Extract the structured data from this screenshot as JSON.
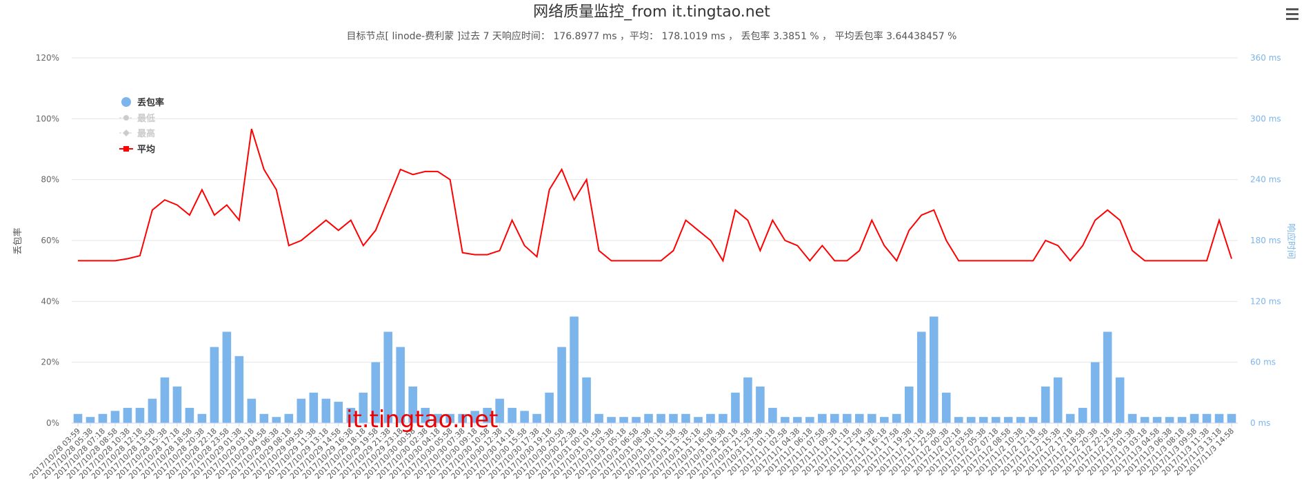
{
  "chart_data": {
    "type": "bar_line",
    "title": "网络质量监控_from it.tingtao.net",
    "subtitle": "目标节点[ linode-费利蒙 ]过去 7 天响应时间： 176.8977 ms ，平均： 178.1019 ms ， 丢包率 3.3851 % ， 平均丢包率 3.64438457 %",
    "y_label": "丢包率",
    "y2_label": "响应时间",
    "watermark": "it.tingtao.net",
    "categories": [
      "2017/10/28 03:59",
      "2017/10/28 05:38",
      "2017/10/28 07:18",
      "2017/10/28 08:58",
      "2017/10/28 10:38",
      "2017/10/28 12:18",
      "2017/10/28 13:58",
      "2017/10/28 15:38",
      "2017/10/28 17:18",
      "2017/10/28 18:58",
      "2017/10/28 20:38",
      "2017/10/28 22:18",
      "2017/10/28 23:58",
      "2017/10/29 01:38",
      "2017/10/29 03:18",
      "2017/10/29 04:58",
      "2017/10/29 06:38",
      "2017/10/29 08:18",
      "2017/10/29 09:58",
      "2017/10/29 11:38",
      "2017/10/29 13:18",
      "2017/10/29 14:58",
      "2017/10/29 16:38",
      "2017/10/29 18:18",
      "2017/10/29 19:58",
      "2017/10/29 21:38",
      "2017/10/29 23:18",
      "2017/10/30 00:58",
      "2017/10/30 02:38",
      "2017/10/30 04:18",
      "2017/10/30 05:58",
      "2017/10/30 07:38",
      "2017/10/30 09:18",
      "2017/10/30 10:58",
      "2017/10/30 12:38",
      "2017/10/30 14:18",
      "2017/10/30 15:58",
      "2017/10/30 17:38",
      "2017/10/30 19:18",
      "2017/10/30 20:58",
      "2017/10/30 22:38",
      "2017/10/31 00:18",
      "2017/10/31 01:58",
      "2017/10/31 03:38",
      "2017/10/31 05:18",
      "2017/10/31 06:58",
      "2017/10/31 08:38",
      "2017/10/31 10:18",
      "2017/10/31 11:58",
      "2017/10/31 13:38",
      "2017/10/31 15:18",
      "2017/10/31 16:58",
      "2017/10/31 18:38",
      "2017/10/31 20:18",
      "2017/10/31 21:58",
      "2017/10/31 23:38",
      "2017/11/1 01:18",
      "2017/11/1 02:58",
      "2017/11/1 04:38",
      "2017/11/1 06:18",
      "2017/11/1 07:58",
      "2017/11/1 09:38",
      "2017/11/1 11:18",
      "2017/11/1 12:58",
      "2017/11/1 14:38",
      "2017/11/1 16:18",
      "2017/11/1 17:58",
      "2017/11/1 19:38",
      "2017/11/1 21:18",
      "2017/11/1 22:58",
      "2017/11/2 00:38",
      "2017/11/2 02:18",
      "2017/11/2 03:58",
      "2017/11/2 05:38",
      "2017/11/2 07:18",
      "2017/11/2 08:58",
      "2017/11/2 10:38",
      "2017/11/2 12:18",
      "2017/11/2 13:58",
      "2017/11/2 15:38",
      "2017/11/2 17:18",
      "2017/11/2 18:58",
      "2017/11/2 20:38",
      "2017/11/2 22:18",
      "2017/11/2 23:58",
      "2017/11/3 01:38",
      "2017/11/3 03:18",
      "2017/11/3 04:58",
      "2017/11/3 06:38",
      "2017/11/3 08:18",
      "2017/11/3 09:58",
      "2017/11/3 11:38",
      "2017/11/3 13:18",
      "2017/11/3 14:58"
    ],
    "series": [
      {
        "name": "丢包率",
        "color": "#7cb5ec",
        "kind": "bar",
        "values": [
          3,
          2,
          3,
          4,
          5,
          5,
          8,
          15,
          12,
          5,
          3,
          25,
          30,
          22,
          8,
          3,
          2,
          3,
          8,
          10,
          8,
          7,
          5,
          10,
          20,
          30,
          25,
          12,
          5,
          3,
          3,
          3,
          4,
          5,
          8,
          5,
          4,
          3,
          10,
          25,
          35,
          15,
          3,
          2,
          2,
          2,
          3,
          3,
          3,
          3,
          2,
          3,
          3,
          10,
          15,
          12,
          5,
          2,
          2,
          2,
          3,
          3,
          3,
          3,
          3,
          2,
          3,
          12,
          30,
          35,
          10,
          2,
          2,
          2,
          2,
          2,
          2,
          2,
          12,
          15,
          3,
          5,
          20,
          30,
          15,
          3,
          2,
          2,
          2,
          2,
          3,
          3,
          3,
          3
        ]
      },
      {
        "name": "最低",
        "color": "#cccccc",
        "kind": "line",
        "visible": false
      },
      {
        "name": "最高",
        "color": "#cccccc",
        "kind": "line",
        "visible": false
      },
      {
        "name": "平均",
        "color": "#ff0000",
        "kind": "line",
        "axis": "y2",
        "values": [
          160,
          160,
          160,
          160,
          162,
          165,
          210,
          220,
          215,
          205,
          230,
          205,
          215,
          200,
          290,
          250,
          230,
          175,
          180,
          190,
          200,
          190,
          200,
          175,
          190,
          220,
          250,
          245,
          248,
          248,
          240,
          168,
          166,
          166,
          170,
          200,
          175,
          164,
          230,
          250,
          220,
          240,
          170,
          160,
          160,
          160,
          160,
          160,
          170,
          200,
          190,
          180,
          160,
          210,
          200,
          170,
          200,
          180,
          175,
          160,
          175,
          160,
          160,
          170,
          200,
          175,
          160,
          190,
          205,
          210,
          180,
          160,
          160,
          160,
          160,
          160,
          160,
          160,
          180,
          175,
          160,
          175,
          200,
          210,
          200,
          170,
          160,
          160,
          160,
          160,
          160,
          160,
          200,
          162
        ]
      }
    ],
    "ylim": [
      0,
      120
    ],
    "yticks": [
      {
        "value": 0,
        "label": "0%"
      },
      {
        "value": 20,
        "label": "20%"
      },
      {
        "value": 40,
        "label": "40%"
      },
      {
        "value": 60,
        "label": "60%"
      },
      {
        "value": 80,
        "label": "80%"
      },
      {
        "value": 100,
        "label": "100%"
      },
      {
        "value": 120,
        "label": "120%"
      }
    ],
    "y2lim": [
      0,
      360
    ],
    "y2ticks": [
      {
        "value": 0,
        "label": "0 ms"
      },
      {
        "value": 60,
        "label": "60 ms"
      },
      {
        "value": 120,
        "label": "120 ms"
      },
      {
        "value": 180,
        "label": "180 ms"
      },
      {
        "value": 240,
        "label": "240 ms"
      },
      {
        "value": 300,
        "label": "300 ms"
      },
      {
        "value": 360,
        "label": "360 ms"
      }
    ],
    "grid": true
  }
}
